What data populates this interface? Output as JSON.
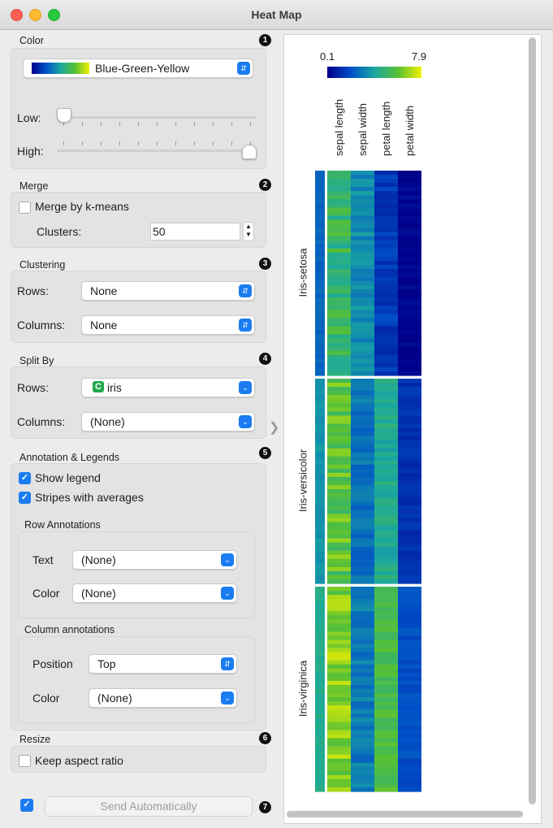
{
  "window": {
    "title": "Heat Map"
  },
  "color": {
    "title": "Color",
    "badge": "1",
    "palette": "Blue-Green-Yellow",
    "low_label": "Low:",
    "high_label": "High:",
    "low_value": 0.0,
    "high_value": 1.0
  },
  "merge": {
    "title": "Merge",
    "badge": "2",
    "merge_label": "Merge by k-means",
    "merge_checked": false,
    "clusters_label": "Clusters:",
    "clusters_value": "50"
  },
  "clustering": {
    "title": "Clustering",
    "badge": "3",
    "rows_label": "Rows:",
    "rows_value": "None",
    "columns_label": "Columns:",
    "columns_value": "None"
  },
  "split": {
    "title": "Split By",
    "badge": "4",
    "rows_label": "Rows:",
    "rows_icon": "C",
    "rows_value": "iris",
    "columns_label": "Columns:",
    "columns_value": "(None)"
  },
  "annotation": {
    "title": "Annotation & Legends",
    "badge": "5",
    "show_legend": "Show legend",
    "stripes": "Stripes with averages",
    "row_title": "Row Annotations",
    "text_label": "Text",
    "text_value": "(None)",
    "color_label": "Color",
    "color_value": "(None)",
    "col_title": "Column annotations",
    "position_label": "Position",
    "position_value": "Top",
    "col_color_label": "Color",
    "col_color_value": "(None)"
  },
  "resize": {
    "title": "Resize",
    "badge": "6",
    "keep_label": "Keep aspect ratio"
  },
  "send": {
    "label": "Send Automatically",
    "badge": "7",
    "auto_checked": true
  },
  "legend": {
    "min": "0.1",
    "max": "7.9"
  },
  "colors": {
    "accent": "#1a7cf0",
    "badge": "#111111",
    "iris_icon": "#1fa84a"
  },
  "icons": {
    "popup": "chevron-updown-icon",
    "dropdown": "chevron-down-icon",
    "check": "checkmark-icon",
    "collapse": "chevron-right-icon"
  },
  "chart_data": {
    "type": "heatmap",
    "columns": [
      "sepal length",
      "sepal width",
      "petal length",
      "petal width"
    ],
    "groups": [
      {
        "name": "Iris-setosa",
        "rows": 50,
        "means": [
          5.0,
          3.4,
          1.5,
          0.2
        ]
      },
      {
        "name": "Iris-versicolor",
        "rows": 50,
        "means": [
          5.9,
          2.8,
          4.3,
          1.3
        ]
      },
      {
        "name": "Iris-virginica",
        "rows": 50,
        "means": [
          6.6,
          3.0,
          5.6,
          2.0
        ]
      }
    ],
    "range": [
      0.1,
      7.9
    ],
    "palette": "Blue-Green-Yellow"
  }
}
